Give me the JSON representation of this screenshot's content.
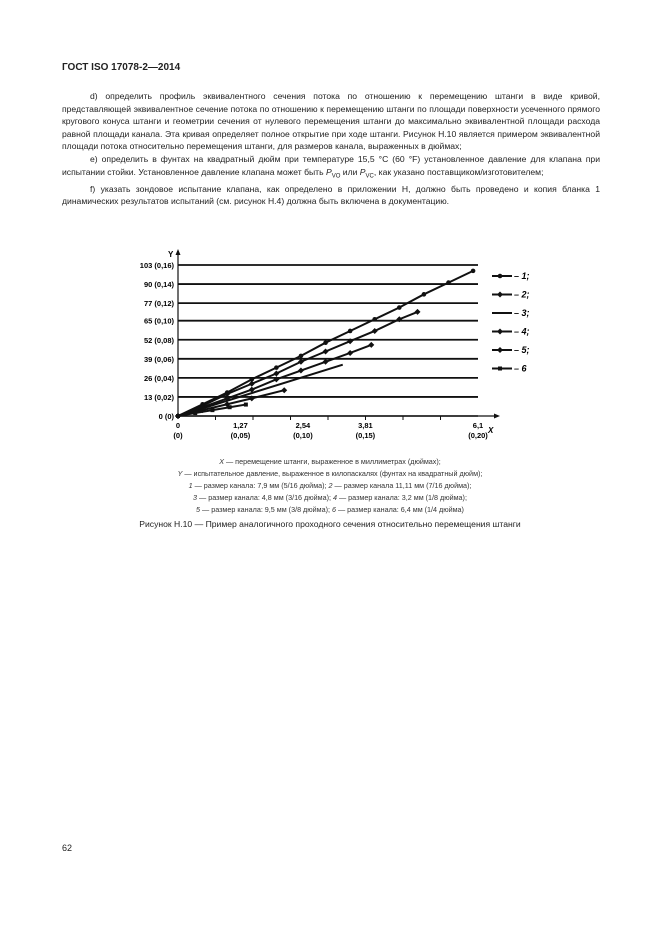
{
  "header": {
    "title": "ГОСТ ISO 17078-2—2014"
  },
  "body": {
    "paragraphs": [
      "d) определить профиль эквивалентного сечения потока по отношению к перемещению штанги в виде кривой, представляющей эквивалентное сечение потока по отношению к перемещению штанги по площади поверхности усеченного прямого кругового конуса штанги и геометрии сечения от нулевого перемещения штанги до максимально эквивалентной площади расхода равной площади канала. Эта кривая определяет полное открытие при ходе штанги. Рисунок Н.10 является примером эквивалентной площади потока относительно перемещения штанги, для размеров канала, выраженных в дюймах;",
      "e) определить в фунтах на квадратный дюйм при температуре 15,5 °С (60 °F) установленное давление для клапана при испытании стойки. Установленное давление клапана может быть ",
      "f) указать зондовое испытание клапана, как определено в приложении Н, должно быть проведено и копия бланка 1 динамических результатов испытаний (см. рисунок Н.4) должна быть включена в документацию."
    ],
    "p_e_sym1": "P",
    "p_e_sub1": "VO",
    "p_e_mid": " или ",
    "p_e_sym2": "P",
    "p_e_sub2": "VC",
    "p_e_end": ", как указано поставщиком/изготовителем;"
  },
  "chart_data": {
    "type": "line",
    "xlabel": "X",
    "ylabel": "Y",
    "xlim": [
      0,
      6.1
    ],
    "ylim": [
      0,
      103
    ],
    "x_ticks": [
      {
        "v": 0,
        "l1": "0",
        "l2": "(0)"
      },
      {
        "v": 1.27,
        "l1": "1,27",
        "l2": "(0,05)"
      },
      {
        "v": 2.54,
        "l1": "2,54",
        "l2": "(0,10)"
      },
      {
        "v": 3.81,
        "l1": "3,81",
        "l2": "(0,15)"
      },
      {
        "v": 6.1,
        "l1": "6,1",
        "l2": "(0,20)"
      }
    ],
    "y_ticks": [
      {
        "v": 0,
        "l": "0 (0)"
      },
      {
        "v": 13,
        "l": "13 (0,02)"
      },
      {
        "v": 26,
        "l": "26 (0,04)"
      },
      {
        "v": 39,
        "l": "39 (0,06)"
      },
      {
        "v": 52,
        "l": "52 (0,08)"
      },
      {
        "v": 65,
        "l": "65 (0,10)"
      },
      {
        "v": 77,
        "l": "77 (0,12)"
      },
      {
        "v": 90,
        "l": "90 (0,14)"
      },
      {
        "v": 103,
        "l": "103 (0,16)"
      }
    ],
    "grid": "horizontal",
    "legend_placement": "right",
    "series": [
      {
        "name": "– 1;",
        "marker": "circle",
        "x": [
          0,
          0.5,
          1,
          1.5,
          2,
          2.5,
          3,
          3.5,
          4,
          4.5,
          5,
          5.5,
          6.0
        ],
        "y": [
          0,
          8,
          16,
          25,
          33,
          41,
          50,
          58,
          66,
          74,
          83,
          91,
          99
        ]
      },
      {
        "name": "– 2;",
        "marker": "diamond",
        "x": [
          0,
          0.5,
          1,
          1.5,
          2,
          2.5,
          3,
          3.5,
          4,
          4.5,
          4.87
        ],
        "y": [
          0,
          7,
          15,
          22,
          29,
          37,
          44,
          51,
          58,
          66,
          71
        ]
      },
      {
        "name": "– 3;",
        "marker": "none",
        "x": [
          0,
          3.35
        ],
        "y": [
          0,
          35
        ]
      },
      {
        "name": "– 4;",
        "marker": "diamond",
        "x": [
          0,
          0.5,
          1,
          1.5,
          2,
          2.5,
          3,
          3.5,
          3.93
        ],
        "y": [
          0,
          6,
          12,
          18,
          25,
          31,
          37,
          43,
          48.5
        ]
      },
      {
        "name": "– 5;",
        "marker": "diamond",
        "x": [
          0,
          0.5,
          1,
          1.5,
          2.16
        ],
        "y": [
          0,
          4,
          8,
          12,
          17.6
        ]
      },
      {
        "name": "– 6",
        "marker": "square",
        "x": [
          0,
          0.35,
          0.7,
          1.05,
          1.38
        ],
        "y": [
          0,
          2,
          4,
          6,
          7.8
        ]
      }
    ]
  },
  "caption": {
    "lines": [
      [
        "X",
        " — перемещение штанги, выраженное в миллиметрах (дюймах);"
      ],
      [
        "Y",
        " — испытательное давление, выраженное в килопаскалях (фунтах на квадратный дюйм);"
      ],
      [
        "1",
        " — размер канала: 7,9 мм (5/16 дюйма); ",
        "2",
        " — размер канала 11,11 мм (7/16 дюйма);"
      ],
      [
        "3",
        " — размер канала: 4,8 мм (3/16 дюйма); ",
        "4",
        " — размер канала: 3,2 мм (1/8 дюйма);"
      ],
      [
        "5",
        " — размер канала: 9,5 мм (3/8 дюйма); ",
        "6",
        " — размер канала: 6,4 мм (1/4 дюйма)"
      ]
    ],
    "figure": "Рисунок Н.10 — Пример аналогичного проходного сечения относительно перемещения штанги"
  },
  "page_number": "62"
}
